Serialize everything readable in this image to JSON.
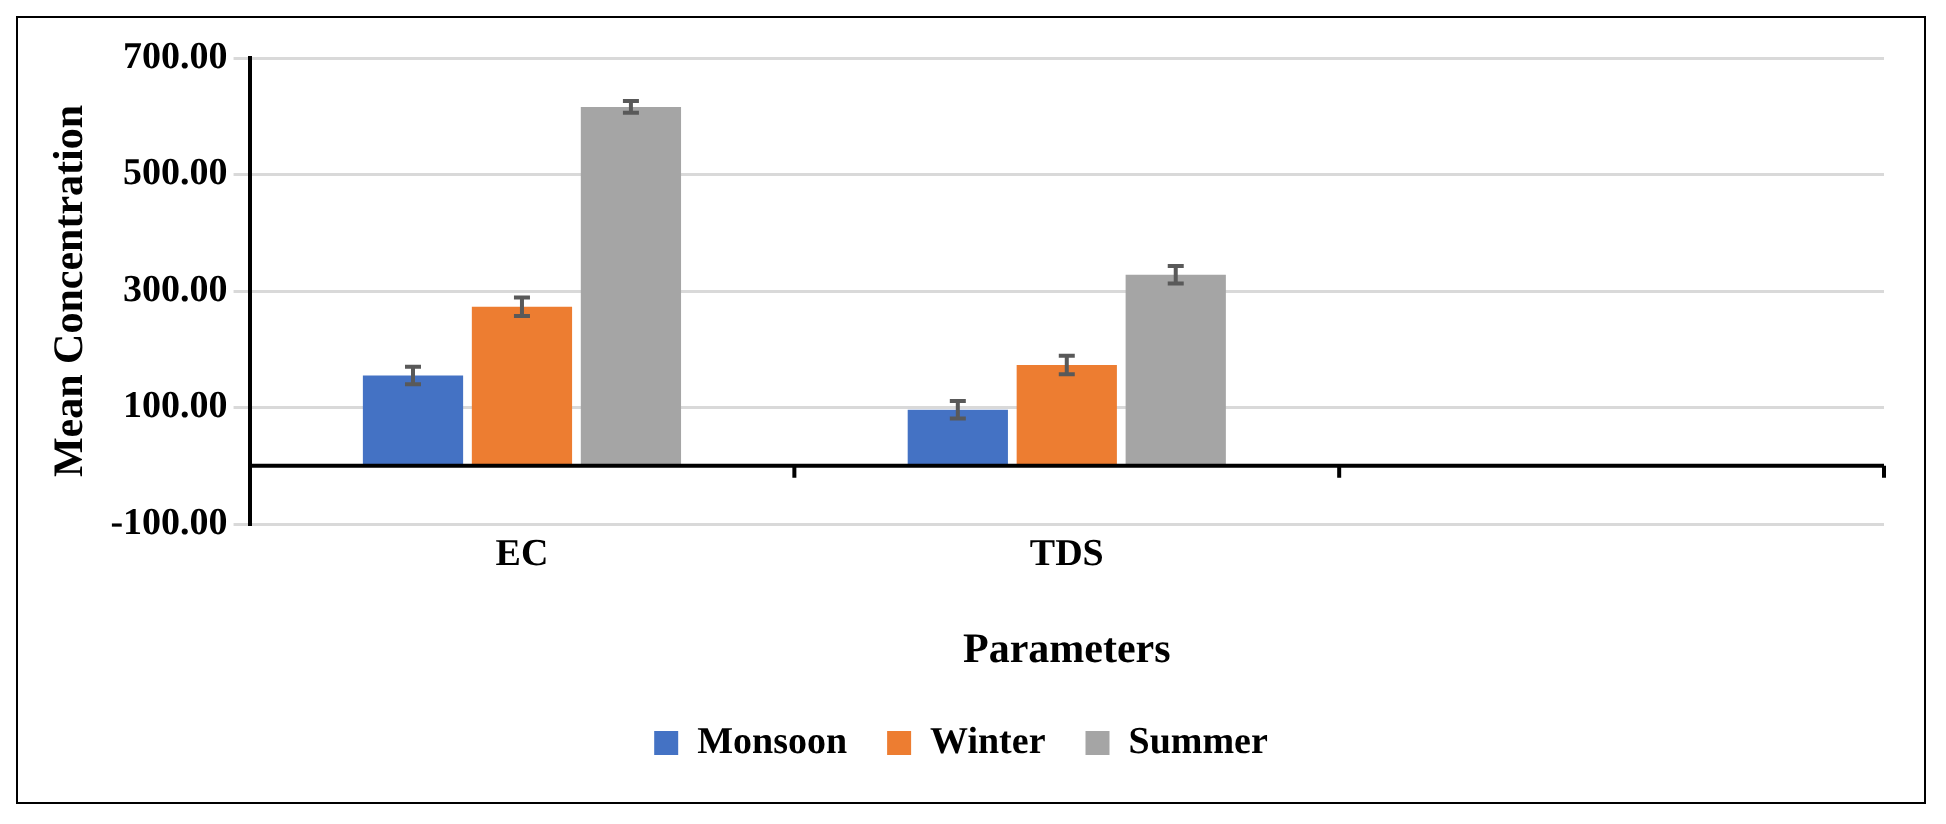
{
  "chart_data": {
    "type": "bar",
    "xlabel": "Parameters",
    "ylabel": "Mean Concentration",
    "categories": [
      "EC",
      "TDS",
      null
    ],
    "series": [
      {
        "name": "Monsoon",
        "color": "#4472c4",
        "values": [
          155,
          96,
          null
        ],
        "errors": [
          15,
          15,
          null
        ]
      },
      {
        "name": "Winter",
        "color": "#ed7d31",
        "values": [
          273,
          173,
          null
        ],
        "errors": [
          16,
          16,
          null
        ]
      },
      {
        "name": "Summer",
        "color": "#a5a5a5",
        "values": [
          616,
          328,
          null
        ],
        "errors": [
          10,
          15,
          null
        ]
      }
    ],
    "ylim": [
      -100,
      700
    ],
    "yticks": [
      {
        "value": -100,
        "label": "-100.00"
      },
      {
        "value": 100,
        "label": "100.00"
      },
      {
        "value": 300,
        "label": "300.00"
      },
      {
        "value": 500,
        "label": "500.00"
      },
      {
        "value": 700,
        "label": "700.00"
      }
    ],
    "grid": "y",
    "legend": "bottom"
  }
}
